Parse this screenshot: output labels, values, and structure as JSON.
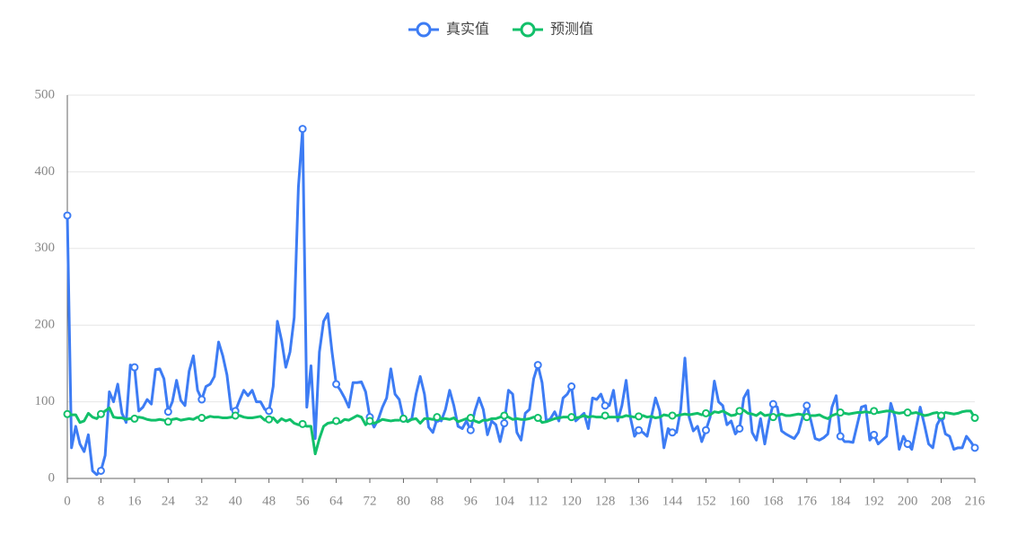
{
  "chart_data": {
    "type": "line",
    "x": [
      0,
      1,
      2,
      3,
      4,
      5,
      6,
      7,
      8,
      9,
      10,
      11,
      12,
      13,
      14,
      15,
      16,
      17,
      18,
      19,
      20,
      21,
      22,
      23,
      24,
      25,
      26,
      27,
      28,
      29,
      30,
      31,
      32,
      33,
      34,
      35,
      36,
      37,
      38,
      39,
      40,
      41,
      42,
      43,
      44,
      45,
      46,
      47,
      48,
      49,
      50,
      51,
      52,
      53,
      54,
      55,
      56,
      57,
      58,
      59,
      60,
      61,
      62,
      63,
      64,
      65,
      66,
      67,
      68,
      69,
      70,
      71,
      72,
      73,
      74,
      75,
      76,
      77,
      78,
      79,
      80,
      81,
      82,
      83,
      84,
      85,
      86,
      87,
      88,
      89,
      90,
      91,
      92,
      93,
      94,
      95,
      96,
      97,
      98,
      99,
      100,
      101,
      102,
      103,
      104,
      105,
      106,
      107,
      108,
      109,
      110,
      111,
      112,
      113,
      114,
      115,
      116,
      117,
      118,
      119,
      120,
      121,
      122,
      123,
      124,
      125,
      126,
      127,
      128,
      129,
      130,
      131,
      132,
      133,
      134,
      135,
      136,
      137,
      138,
      139,
      140,
      141,
      142,
      143,
      144,
      145,
      146,
      147,
      148,
      149,
      150,
      151,
      152,
      153,
      154,
      155,
      156,
      157,
      158,
      159,
      160,
      161,
      162,
      163,
      164,
      165,
      166,
      167,
      168,
      169,
      170,
      171,
      172,
      173,
      174,
      175,
      176,
      177,
      178,
      179,
      180,
      181,
      182,
      183,
      184,
      185,
      186,
      187,
      188,
      189,
      190,
      191,
      192,
      193,
      194,
      195,
      196,
      197,
      198,
      199,
      200,
      201,
      202,
      203,
      204,
      205,
      206,
      207,
      208,
      209,
      210,
      211,
      212,
      213,
      214,
      215,
      216
    ],
    "xlim": [
      0,
      216
    ],
    "xticks": [
      0,
      8,
      16,
      24,
      32,
      40,
      48,
      56,
      64,
      72,
      80,
      88,
      96,
      104,
      112,
      120,
      128,
      136,
      144,
      152,
      160,
      168,
      176,
      184,
      192,
      200,
      208,
      216
    ],
    "ylim": [
      0,
      500
    ],
    "yticks": [
      0,
      100,
      200,
      300,
      400,
      500
    ],
    "grid": true,
    "legend": "top",
    "series": [
      {
        "name": "真实值",
        "color": "#3d7cf4",
        "values": [
          343,
          40,
          68,
          45,
          35,
          57,
          10,
          5,
          10,
          30,
          113,
          100,
          123,
          85,
          73,
          148,
          145,
          88,
          93,
          103,
          97,
          142,
          143,
          130,
          87,
          100,
          128,
          102,
          95,
          140,
          160,
          115,
          103,
          120,
          123,
          133,
          178,
          160,
          135,
          90,
          88,
          102,
          115,
          108,
          115,
          100,
          100,
          90,
          88,
          120,
          205,
          180,
          145,
          165,
          210,
          380,
          456,
          93,
          147,
          52,
          165,
          205,
          215,
          165,
          123,
          115,
          105,
          93,
          125,
          125,
          126,
          113,
          80,
          67,
          77,
          93,
          105,
          143,
          110,
          103,
          78,
          75,
          78,
          110,
          133,
          110,
          67,
          60,
          78,
          75,
          90,
          115,
          95,
          68,
          65,
          75,
          63,
          88,
          105,
          90,
          57,
          75,
          70,
          48,
          72,
          115,
          110,
          60,
          50,
          85,
          90,
          130,
          148,
          125,
          75,
          78,
          87,
          75,
          105,
          110,
          120,
          75,
          80,
          85,
          65,
          105,
          103,
          110,
          95,
          95,
          115,
          75,
          95,
          128,
          80,
          55,
          63,
          60,
          55,
          80,
          105,
          88,
          40,
          65,
          60,
          60,
          90,
          157,
          80,
          62,
          68,
          48,
          63,
          80,
          127,
          100,
          95,
          70,
          75,
          58,
          65,
          105,
          115,
          60,
          50,
          78,
          45,
          75,
          97,
          93,
          62,
          58,
          55,
          52,
          60,
          80,
          95,
          75,
          52,
          50,
          53,
          58,
          93,
          108,
          55,
          48,
          48,
          47,
          70,
          93,
          95,
          50,
          57,
          45,
          50,
          55,
          98,
          80,
          38,
          55,
          45,
          38,
          65,
          93,
          70,
          45,
          40,
          70,
          80,
          58,
          55,
          38,
          40,
          40,
          55,
          48,
          40
        ]
      },
      {
        "name": "预测值",
        "color": "#12c06a",
        "values": [
          84,
          83,
          83,
          73,
          75,
          85,
          80,
          78,
          84,
          88,
          92,
          80,
          79,
          79,
          77,
          78,
          78,
          80,
          79,
          77,
          76,
          76,
          77,
          76,
          74,
          77,
          78,
          76,
          77,
          78,
          77,
          80,
          79,
          79,
          81,
          80,
          80,
          79,
          79,
          80,
          82,
          82,
          80,
          79,
          79,
          80,
          81,
          76,
          77,
          79,
          73,
          78,
          75,
          77,
          72,
          70,
          71,
          68,
          68,
          32,
          52,
          68,
          72,
          73,
          75,
          73,
          77,
          76,
          79,
          82,
          80,
          70,
          75,
          72,
          74,
          77,
          76,
          75,
          76,
          76,
          78,
          74,
          77,
          78,
          72,
          78,
          78,
          77,
          80,
          78,
          78,
          77,
          79,
          74,
          76,
          78,
          79,
          75,
          73,
          76,
          76,
          78,
          78,
          80,
          82,
          80,
          77,
          78,
          77,
          77,
          78,
          80,
          79,
          73,
          74,
          76,
          78,
          79,
          80,
          80,
          80,
          79,
          80,
          82,
          80,
          81,
          80,
          80,
          82,
          80,
          80,
          80,
          80,
          82,
          81,
          80,
          81,
          82,
          80,
          81,
          79,
          80,
          83,
          82,
          82,
          82,
          83,
          84,
          83,
          84,
          85,
          83,
          85,
          83,
          87,
          86,
          88,
          85,
          82,
          83,
          88,
          89,
          85,
          84,
          82,
          86,
          82,
          83,
          80,
          82,
          84,
          82,
          82,
          83,
          84,
          83,
          80,
          82,
          82,
          83,
          80,
          78,
          82,
          84,
          86,
          85,
          84,
          85,
          86,
          86,
          87,
          86,
          88,
          86,
          87,
          88,
          88,
          86,
          85,
          86,
          86,
          85,
          86,
          84,
          82,
          83,
          85,
          86,
          82,
          86,
          85,
          84,
          85,
          87,
          88,
          88,
          79
        ]
      }
    ]
  }
}
